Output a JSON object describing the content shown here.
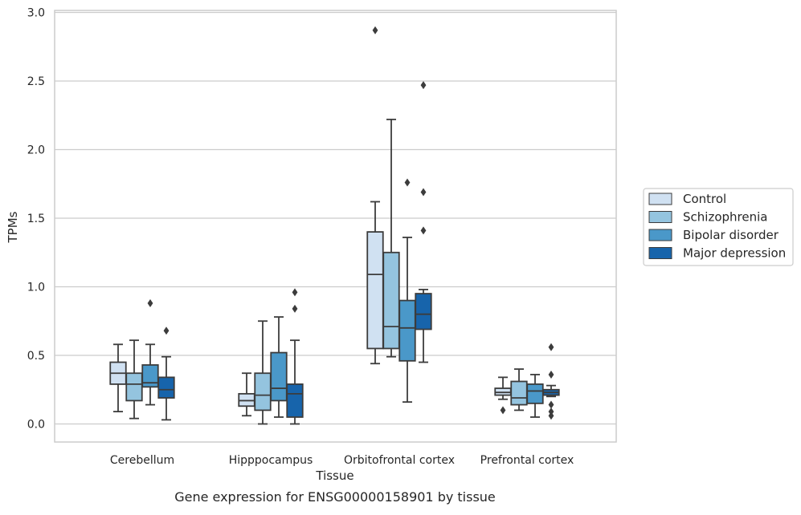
{
  "chart_data": {
    "type": "box",
    "caption": "Gene expression for ENSG00000158901 by tissue",
    "xlabel": "Tissue",
    "ylabel": "TPMs",
    "ylim": [
      -0.14,
      3.02
    ],
    "yticks": [
      "0.0",
      "0.5",
      "1.0",
      "1.5",
      "2.0",
      "2.5",
      "3.0"
    ],
    "grid": "horizontal",
    "legend_position": "right",
    "categories": [
      "Cerebellum",
      "Hipppocampus",
      "Orbitofrontal cortex",
      "Prefrontal cortex"
    ],
    "series": [
      {
        "name": "Control",
        "color": "#d0e1f2",
        "boxes": [
          {
            "whisker_low": 0.09,
            "q1": 0.29,
            "median": 0.37,
            "q3": 0.45,
            "whisker_high": 0.58,
            "outliers": []
          },
          {
            "whisker_low": 0.06,
            "q1": 0.13,
            "median": 0.17,
            "q3": 0.22,
            "whisker_high": 0.37,
            "outliers": []
          },
          {
            "whisker_low": 0.44,
            "q1": 0.55,
            "median": 1.09,
            "q3": 1.4,
            "whisker_high": 1.62,
            "outliers": [
              2.87
            ]
          },
          {
            "whisker_low": 0.18,
            "q1": 0.21,
            "median": 0.23,
            "q3": 0.26,
            "whisker_high": 0.34,
            "outliers": [
              0.1
            ]
          }
        ]
      },
      {
        "name": "Schizophrenia",
        "color": "#94c4df",
        "boxes": [
          {
            "whisker_low": 0.04,
            "q1": 0.17,
            "median": 0.29,
            "q3": 0.37,
            "whisker_high": 0.61,
            "outliers": []
          },
          {
            "whisker_low": 0.0,
            "q1": 0.1,
            "median": 0.21,
            "q3": 0.37,
            "whisker_high": 0.75,
            "outliers": []
          },
          {
            "whisker_low": 0.49,
            "q1": 0.55,
            "median": 0.71,
            "q3": 1.25,
            "whisker_high": 2.22,
            "outliers": []
          },
          {
            "whisker_low": 0.1,
            "q1": 0.14,
            "median": 0.19,
            "q3": 0.31,
            "whisker_high": 0.4,
            "outliers": []
          }
        ]
      },
      {
        "name": "Bipolar disorder",
        "color": "#4a98c9",
        "boxes": [
          {
            "whisker_low": 0.14,
            "q1": 0.27,
            "median": 0.3,
            "q3": 0.43,
            "whisker_high": 0.58,
            "outliers": [
              0.88
            ]
          },
          {
            "whisker_low": 0.05,
            "q1": 0.17,
            "median": 0.26,
            "q3": 0.52,
            "whisker_high": 0.78,
            "outliers": []
          },
          {
            "whisker_low": 0.16,
            "q1": 0.46,
            "median": 0.7,
            "q3": 0.9,
            "whisker_high": 1.36,
            "outliers": [
              1.76
            ]
          },
          {
            "whisker_low": 0.05,
            "q1": 0.15,
            "median": 0.24,
            "q3": 0.29,
            "whisker_high": 0.36,
            "outliers": []
          }
        ]
      },
      {
        "name": "Major depression",
        "color": "#1764ab",
        "boxes": [
          {
            "whisker_low": 0.03,
            "q1": 0.19,
            "median": 0.25,
            "q3": 0.34,
            "whisker_high": 0.49,
            "outliers": [
              0.68
            ]
          },
          {
            "whisker_low": 0.0,
            "q1": 0.05,
            "median": 0.22,
            "q3": 0.29,
            "whisker_high": 0.61,
            "outliers": [
              0.84,
              0.96
            ]
          },
          {
            "whisker_low": 0.45,
            "q1": 0.69,
            "median": 0.8,
            "q3": 0.95,
            "whisker_high": 0.98,
            "outliers": [
              1.41,
              1.69,
              2.47
            ]
          },
          {
            "whisker_low": 0.2,
            "q1": 0.21,
            "median": 0.23,
            "q3": 0.25,
            "whisker_high": 0.28,
            "outliers": [
              0.06,
              0.09,
              0.14,
              0.36,
              0.56
            ]
          }
        ]
      }
    ]
  }
}
